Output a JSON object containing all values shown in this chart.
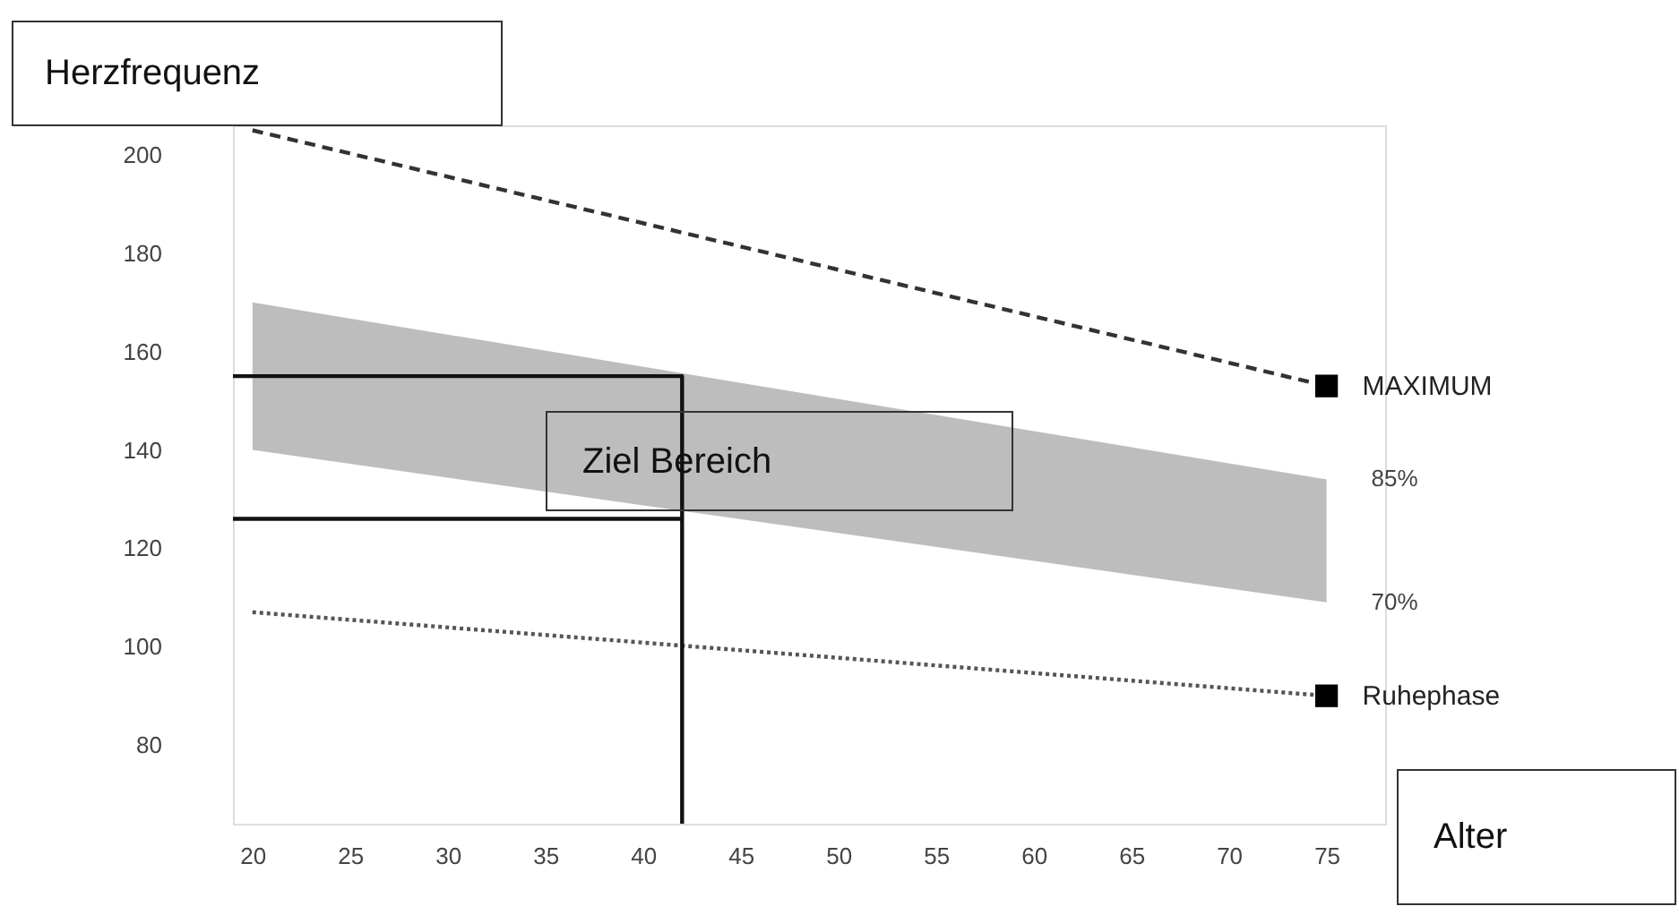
{
  "chart_data": {
    "type": "line",
    "xlabel": "Alter",
    "ylabel": "Herzfrequenz",
    "xlim": [
      19,
      78
    ],
    "ylim": [
      64,
      206
    ],
    "xticks": [
      20,
      25,
      30,
      35,
      40,
      45,
      50,
      55,
      60,
      65,
      70,
      75
    ],
    "yticks": [
      80,
      100,
      120,
      140,
      160,
      180,
      200
    ],
    "grid": false,
    "series": [
      {
        "name": "MAXIMUM",
        "color": "#333333",
        "line_style": "dashed",
        "marker": "square",
        "x": [
          20,
          75
        ],
        "values": [
          205,
          153
        ]
      },
      {
        "type": "area",
        "color": "#bdbdbd",
        "x": [
          20,
          75
        ],
        "values": [
          null,
          null
        ],
        "upper": [
          170,
          134
        ],
        "lower": [
          140,
          109
        ]
      },
      {
        "name": "Ruhephase",
        "color": "#555555",
        "line_style": "dotted",
        "marker": "square",
        "x": [
          20,
          75
        ],
        "values": [
          107,
          90
        ]
      },
      {
        "color": "#111111",
        "line_style": "solid",
        "x": [
          19,
          42,
          42
        ],
        "values": [
          155,
          155,
          64
        ]
      },
      {
        "color": "#111111",
        "line_style": "solid",
        "x": [
          19,
          42
        ],
        "values": [
          126,
          126
        ]
      }
    ],
    "annotations": [
      "Ziel Bereich",
      {
        "text": "85%",
        "x": 75,
        "y": 134
      },
      {
        "text": "70%",
        "x": 75,
        "y": 109
      }
    ]
  }
}
